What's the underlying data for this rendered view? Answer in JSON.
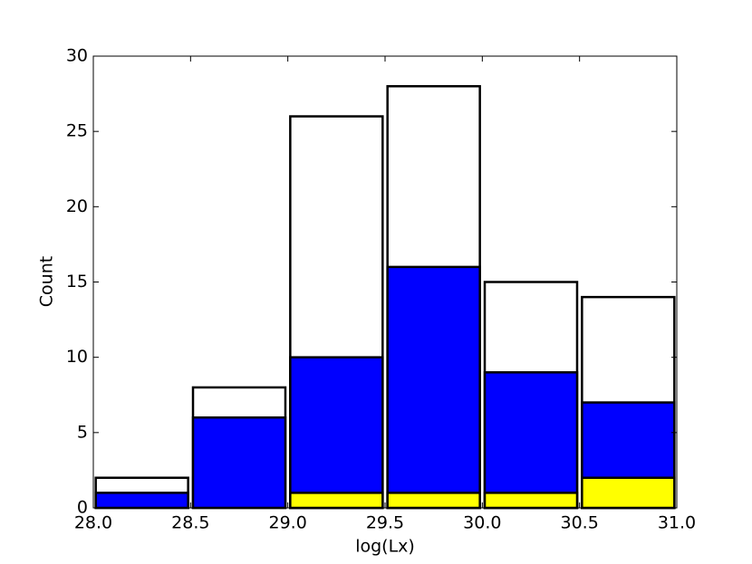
{
  "chart_data": {
    "type": "histogram",
    "xlabel": "log(Lx)",
    "ylabel": "Count",
    "bins": [
      28.0,
      28.5,
      29.0,
      29.5,
      30.0,
      30.5,
      31.0
    ],
    "series": [
      {
        "color": "#ffffff",
        "values": [
          2,
          8,
          26,
          28,
          15,
          14
        ]
      },
      {
        "color": "#0000ff",
        "values": [
          1,
          6,
          10,
          16,
          9,
          7
        ]
      },
      {
        "color": "#ffff00",
        "values": [
          0,
          0,
          1,
          1,
          1,
          2
        ]
      }
    ],
    "xlim": [
      28.0,
      31.0
    ],
    "xticks": [
      {
        "value": 28.0,
        "label": "28.0"
      },
      {
        "value": 28.5,
        "label": "28.5"
      },
      {
        "value": 29.0,
        "label": "29.0"
      },
      {
        "value": 29.5,
        "label": "29.5"
      },
      {
        "value": 30.0,
        "label": "30.0"
      },
      {
        "value": 30.5,
        "label": "30.5"
      },
      {
        "value": 31.0,
        "label": "31.0"
      }
    ],
    "ylim": [
      0,
      30
    ],
    "yticks": [
      0,
      5,
      10,
      15,
      20,
      25,
      30
    ]
  }
}
